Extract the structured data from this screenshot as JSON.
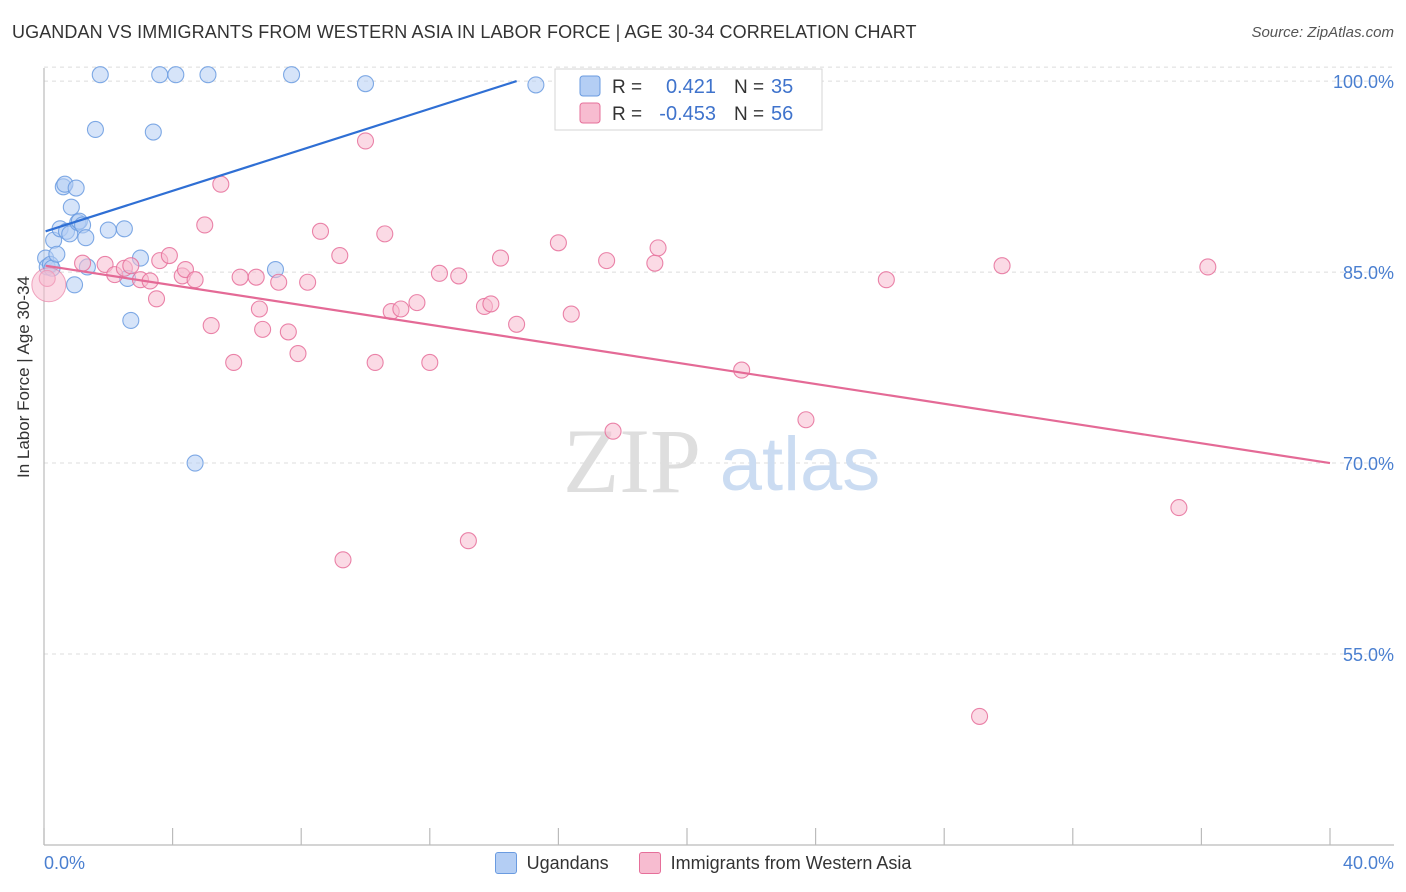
{
  "title": "UGANDAN VS IMMIGRANTS FROM WESTERN ASIA IN LABOR FORCE | AGE 30-34 CORRELATION CHART",
  "source": "Source: ZipAtlas.com",
  "watermark": {
    "zip": "ZIP",
    "atlas": "atlas"
  },
  "chart_data": {
    "type": "scatter",
    "ylabel": "In Labor Force | Age 30-34",
    "xlim": [
      0,
      40
    ],
    "ylim": [
      40,
      101.5
    ],
    "x_tick_labels": [
      "0.0%",
      "40.0%"
    ],
    "y_ticks": [
      55,
      70,
      85,
      100
    ],
    "y_tick_labels": [
      "55.0%",
      "70.0%",
      "85.0%",
      "100.0%"
    ],
    "grid": true,
    "legend_position": "top-center",
    "series": [
      {
        "name": "Ugandans",
        "color": "#6a9be0",
        "fill": "#b4cef4",
        "r_label": "R =",
        "r": "0.421",
        "n_label": "N =",
        "n": "35",
        "trend": {
          "x0": 0.05,
          "y0": 88.2,
          "x1": 14.7,
          "y1": 100.0
        },
        "points": [
          [
            0.05,
            86.1
          ],
          [
            0.1,
            85.4
          ],
          [
            0.2,
            85.6
          ],
          [
            0.25,
            85.3
          ],
          [
            0.3,
            87.5
          ],
          [
            0.4,
            86.4
          ],
          [
            0.5,
            88.4
          ],
          [
            0.6,
            91.7
          ],
          [
            0.65,
            91.9
          ],
          [
            0.7,
            88.2
          ],
          [
            0.8,
            88.0
          ],
          [
            0.85,
            90.1
          ],
          [
            0.95,
            84.0
          ],
          [
            1.0,
            91.6
          ],
          [
            1.05,
            88.9
          ],
          [
            1.1,
            89.0
          ],
          [
            1.2,
            88.7
          ],
          [
            1.3,
            87.7
          ],
          [
            1.35,
            85.4
          ],
          [
            1.6,
            96.2
          ],
          [
            1.75,
            100.5
          ],
          [
            2.0,
            88.3
          ],
          [
            2.5,
            88.4
          ],
          [
            2.6,
            84.5
          ],
          [
            2.7,
            81.2
          ],
          [
            3.0,
            86.1
          ],
          [
            3.4,
            96.0
          ],
          [
            3.6,
            100.5
          ],
          [
            4.1,
            100.5
          ],
          [
            4.7,
            70.0
          ],
          [
            5.1,
            100.5
          ],
          [
            7.2,
            85.2
          ],
          [
            7.7,
            100.5
          ],
          [
            10.0,
            99.8
          ],
          [
            15.3,
            99.7
          ]
        ]
      },
      {
        "name": "Immigrants from Western Asia",
        "color": "#e66f9a",
        "fill": "#f7bcd0",
        "r_label": "R =",
        "r": "-0.453",
        "n_label": "N =",
        "n": "56",
        "trend": {
          "x0": 0.05,
          "y0": 85.5,
          "x1": 40.0,
          "y1": 70.0
        },
        "points": [
          [
            0.1,
            84.5
          ],
          [
            1.2,
            85.7
          ],
          [
            1.9,
            85.6
          ],
          [
            2.2,
            84.8
          ],
          [
            2.5,
            85.3
          ],
          [
            2.7,
            85.5
          ],
          [
            3.0,
            84.4
          ],
          [
            3.3,
            84.3
          ],
          [
            3.5,
            82.9
          ],
          [
            3.6,
            85.9
          ],
          [
            3.9,
            86.3
          ],
          [
            4.3,
            84.7
          ],
          [
            4.4,
            85.2
          ],
          [
            4.7,
            84.4
          ],
          [
            5.0,
            88.7
          ],
          [
            5.2,
            80.8
          ],
          [
            5.5,
            91.9
          ],
          [
            5.9,
            77.9
          ],
          [
            6.1,
            84.6
          ],
          [
            6.6,
            84.6
          ],
          [
            6.7,
            82.1
          ],
          [
            6.8,
            80.5
          ],
          [
            7.3,
            84.2
          ],
          [
            7.6,
            80.3
          ],
          [
            7.9,
            78.6
          ],
          [
            8.2,
            84.2
          ],
          [
            8.6,
            88.2
          ],
          [
            9.2,
            86.3
          ],
          [
            9.3,
            62.4
          ],
          [
            10.0,
            95.3
          ],
          [
            10.3,
            77.9
          ],
          [
            10.6,
            88.0
          ],
          [
            10.8,
            81.9
          ],
          [
            11.1,
            82.1
          ],
          [
            11.6,
            82.6
          ],
          [
            12.0,
            77.9
          ],
          [
            12.3,
            84.9
          ],
          [
            12.9,
            84.7
          ],
          [
            13.2,
            63.9
          ],
          [
            13.7,
            82.3
          ],
          [
            13.9,
            82.5
          ],
          [
            14.2,
            86.1
          ],
          [
            14.7,
            80.9
          ],
          [
            16.0,
            87.3
          ],
          [
            16.4,
            81.7
          ],
          [
            17.5,
            85.9
          ],
          [
            17.7,
            72.5
          ],
          [
            19.0,
            85.7
          ],
          [
            19.1,
            86.9
          ],
          [
            21.7,
            77.3
          ],
          [
            23.7,
            73.4
          ],
          [
            26.2,
            84.4
          ],
          [
            29.1,
            50.1
          ],
          [
            29.8,
            85.5
          ],
          [
            35.3,
            66.5
          ],
          [
            36.2,
            85.4
          ]
        ]
      }
    ]
  }
}
